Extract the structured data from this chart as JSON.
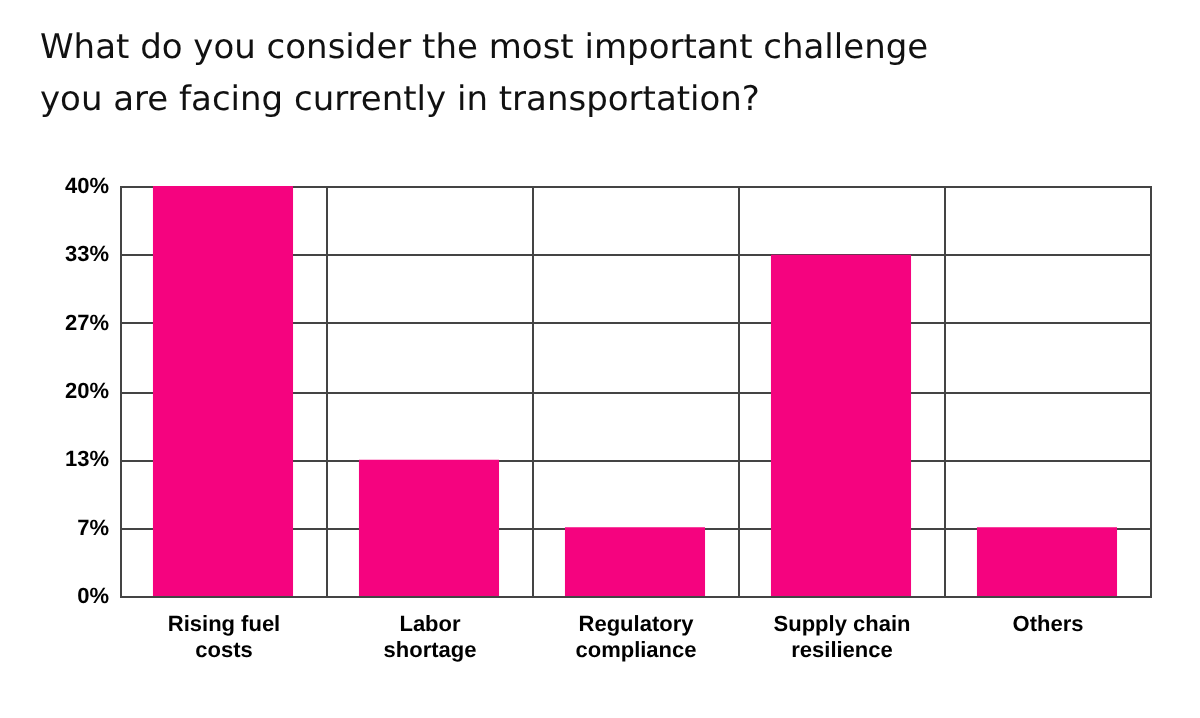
{
  "chart_data": {
    "type": "bar",
    "title": "What do you consider the most important challenge you are facing currently in transportation?",
    "categories": [
      "Rising fuel costs",
      "Labor shortage",
      "Regulatory compliance",
      "Supply chain resilience",
      "Others"
    ],
    "values": [
      40,
      13.3,
      6.7,
      33.3,
      6.7
    ],
    "color": "#f5037f",
    "ylim": [
      0,
      40
    ],
    "yticks": [
      {
        "value": 0,
        "label": "0%"
      },
      {
        "value": 6.67,
        "label": "7%"
      },
      {
        "value": 13.33,
        "label": "13%"
      },
      {
        "value": 20,
        "label": "20%"
      },
      {
        "value": 26.67,
        "label": "27%"
      },
      {
        "value": 33.33,
        "label": "33%"
      },
      {
        "value": 40,
        "label": "40%"
      }
    ],
    "grid": true
  }
}
